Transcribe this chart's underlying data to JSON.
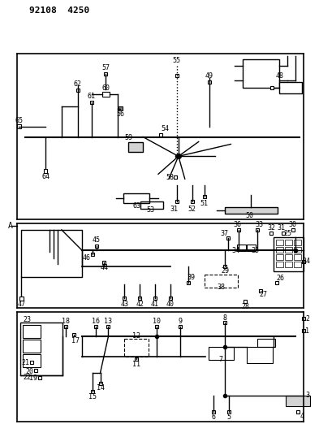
{
  "title": "92108  4250",
  "bg_color": "#ffffff",
  "line_color": "#000000",
  "fig_width": 3.93,
  "fig_height": 5.33,
  "dpi": 100
}
